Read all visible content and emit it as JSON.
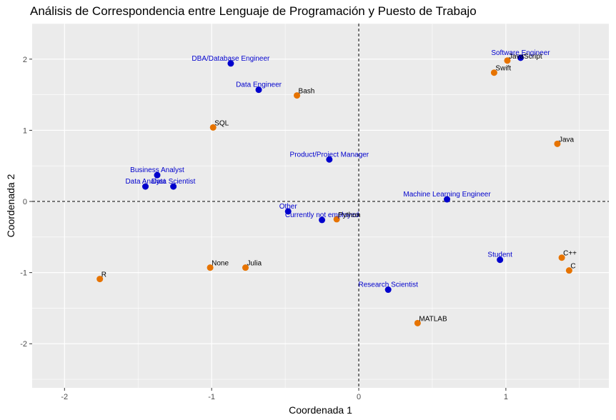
{
  "chart_data": {
    "type": "scatter",
    "title": "Análisis de Correspondencia entre  Lenguaje de Programación y Puesto de Trabajo",
    "xlabel": "Coordenada 1",
    "ylabel": "Coordenada 2",
    "xlim": [
      -2.22,
      1.7
    ],
    "ylim": [
      -2.62,
      2.5
    ],
    "x_ticks": [
      -2,
      -1,
      0,
      1
    ],
    "y_ticks": [
      -2,
      -1,
      0,
      1,
      2
    ],
    "x_tick_labels": [
      "-2",
      "-1",
      "0",
      "1"
    ],
    "y_tick_labels": [
      "-2",
      "-1",
      "0",
      "1",
      "2"
    ],
    "grid": true,
    "reference_lines": {
      "x": 0,
      "y": 0,
      "style": "dashed"
    },
    "colors": {
      "panel_bg": "#ebebeb",
      "grid": "#ffffff",
      "job_point": "#0000cd",
      "job_label": "#0000cd",
      "language_point": "#e67300",
      "language_label": "#000000"
    },
    "series": [
      {
        "color": "#0000cd",
        "points": [
          {
            "label": "DBA/Database Engineer",
            "x": -0.87,
            "y": 1.94
          },
          {
            "label": "Data Engineer",
            "x": -0.68,
            "y": 1.57
          },
          {
            "label": "Business Analyst",
            "x": -1.37,
            "y": 0.37
          },
          {
            "label": "Data Analyst",
            "x": -1.45,
            "y": 0.21
          },
          {
            "label": "Data Scientist",
            "x": -1.26,
            "y": 0.21
          },
          {
            "label": "Product/Project Manager",
            "x": -0.2,
            "y": 0.59
          },
          {
            "label": "Other",
            "x": -0.48,
            "y": -0.14
          },
          {
            "label": "Currently not employed",
            "x": -0.25,
            "y": -0.26
          },
          {
            "label": "Machine Learning Engineer",
            "x": 0.6,
            "y": 0.03
          },
          {
            "label": "Software Engineer",
            "x": 1.1,
            "y": 2.02
          },
          {
            "label": "Student",
            "x": 0.96,
            "y": -0.82
          },
          {
            "label": "Research Scientist",
            "x": 0.2,
            "y": -1.24
          }
        ]
      },
      {
        "color": "#e67300",
        "points": [
          {
            "label": "Bash",
            "x": -0.42,
            "y": 1.49
          },
          {
            "label": "SQL",
            "x": -0.99,
            "y": 1.04
          },
          {
            "label": "JavaScript",
            "x": 1.01,
            "y": 1.98
          },
          {
            "label": "Swift",
            "x": 0.92,
            "y": 1.81
          },
          {
            "label": "Java",
            "x": 1.35,
            "y": 0.81
          },
          {
            "label": "Python",
            "x": -0.15,
            "y": -0.25
          },
          {
            "label": "C++",
            "x": 1.38,
            "y": -0.79
          },
          {
            "label": "C",
            "x": 1.43,
            "y": -0.97
          },
          {
            "label": "MATLAB",
            "x": 0.4,
            "y": -1.71
          },
          {
            "label": "R",
            "x": -1.76,
            "y": -1.09
          },
          {
            "label": "None",
            "x": -1.01,
            "y": -0.93
          },
          {
            "label": "Julia",
            "x": -0.77,
            "y": -0.93
          }
        ]
      }
    ]
  }
}
